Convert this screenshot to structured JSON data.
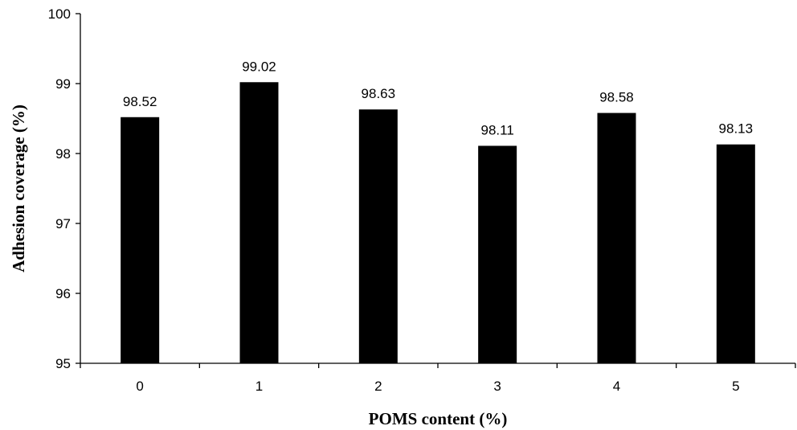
{
  "chart_data": {
    "type": "bar",
    "categories": [
      "0",
      "1",
      "2",
      "3",
      "4",
      "5"
    ],
    "values": [
      98.52,
      99.02,
      98.63,
      98.11,
      98.58,
      98.13
    ],
    "data_labels": [
      "98.52",
      "99.02",
      "98.63",
      "98.11",
      "98.58",
      "98.13"
    ],
    "title": "",
    "xlabel": "POMS content (%)",
    "ylabel": "Adhesion coverage (%)",
    "ylim": [
      95,
      100
    ],
    "yticks": [
      "95",
      "96",
      "97",
      "98",
      "99",
      "100"
    ],
    "grid": false,
    "legend": "none",
    "bar_color": "#000000"
  }
}
